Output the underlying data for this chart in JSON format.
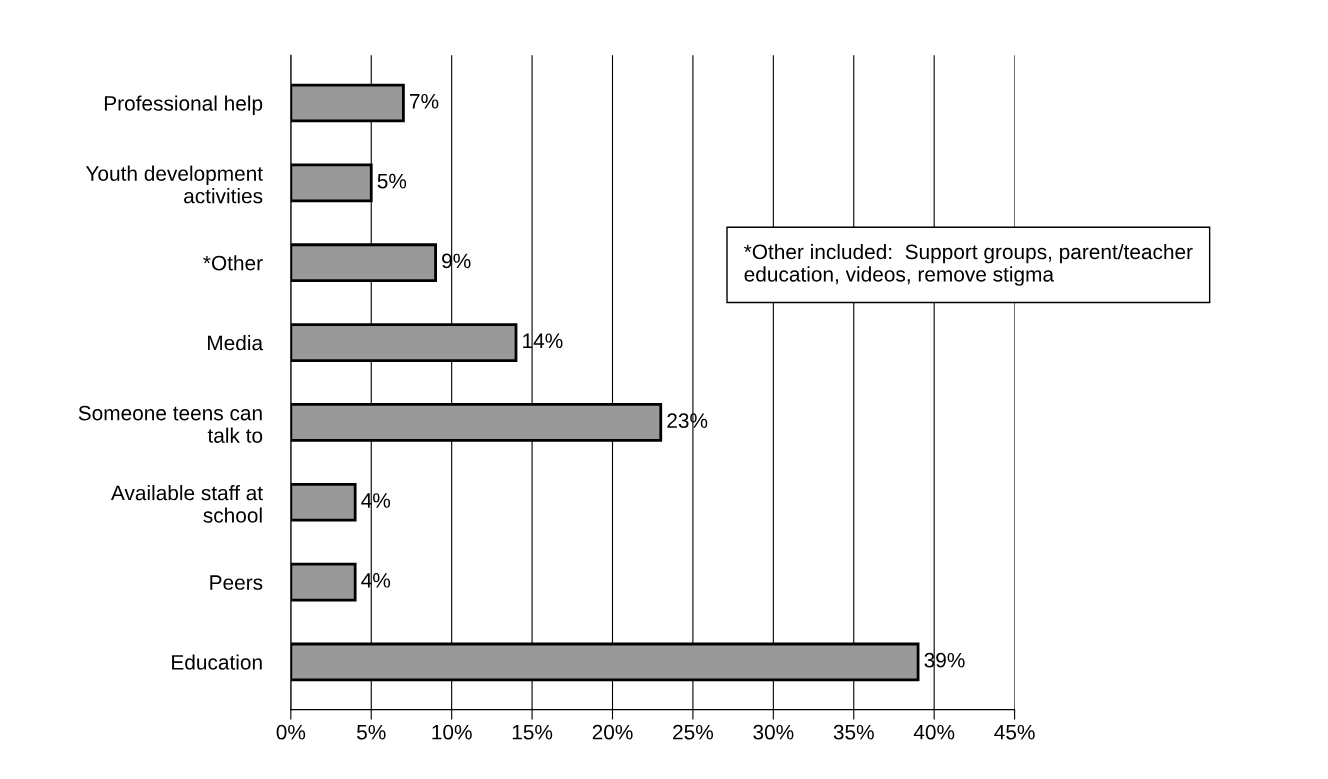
{
  "chart_data": {
    "type": "bar",
    "orientation": "horizontal",
    "categories": [
      "Professional help",
      "Youth development\nactivities",
      "*Other",
      "Media",
      "Someone teens can\ntalk to",
      "Available staff at\nschool",
      "Peers",
      "Education"
    ],
    "values": [
      7,
      5,
      9,
      14,
      23,
      4,
      4,
      39
    ],
    "value_labels": [
      "7%",
      "5%",
      "9%",
      "14%",
      "23%",
      "4%",
      "4%",
      "39%"
    ],
    "color": "#999999",
    "xlim": [
      0,
      45
    ],
    "xticks": [
      {
        "value": 0,
        "label": "0%"
      },
      {
        "value": 5,
        "label": "5%"
      },
      {
        "value": 10,
        "label": "10%"
      },
      {
        "value": 15,
        "label": "15%"
      },
      {
        "value": 20,
        "label": "20%"
      },
      {
        "value": 25,
        "label": "25%"
      },
      {
        "value": 30,
        "label": "30%"
      },
      {
        "value": 35,
        "label": "35%"
      },
      {
        "value": 40,
        "label": "40%"
      },
      {
        "value": 45,
        "label": "45%"
      }
    ],
    "grid": "x",
    "annotations": [
      "*Other included:  Support groups, parent/teacher\neducation, videos, remove stigma"
    ]
  }
}
